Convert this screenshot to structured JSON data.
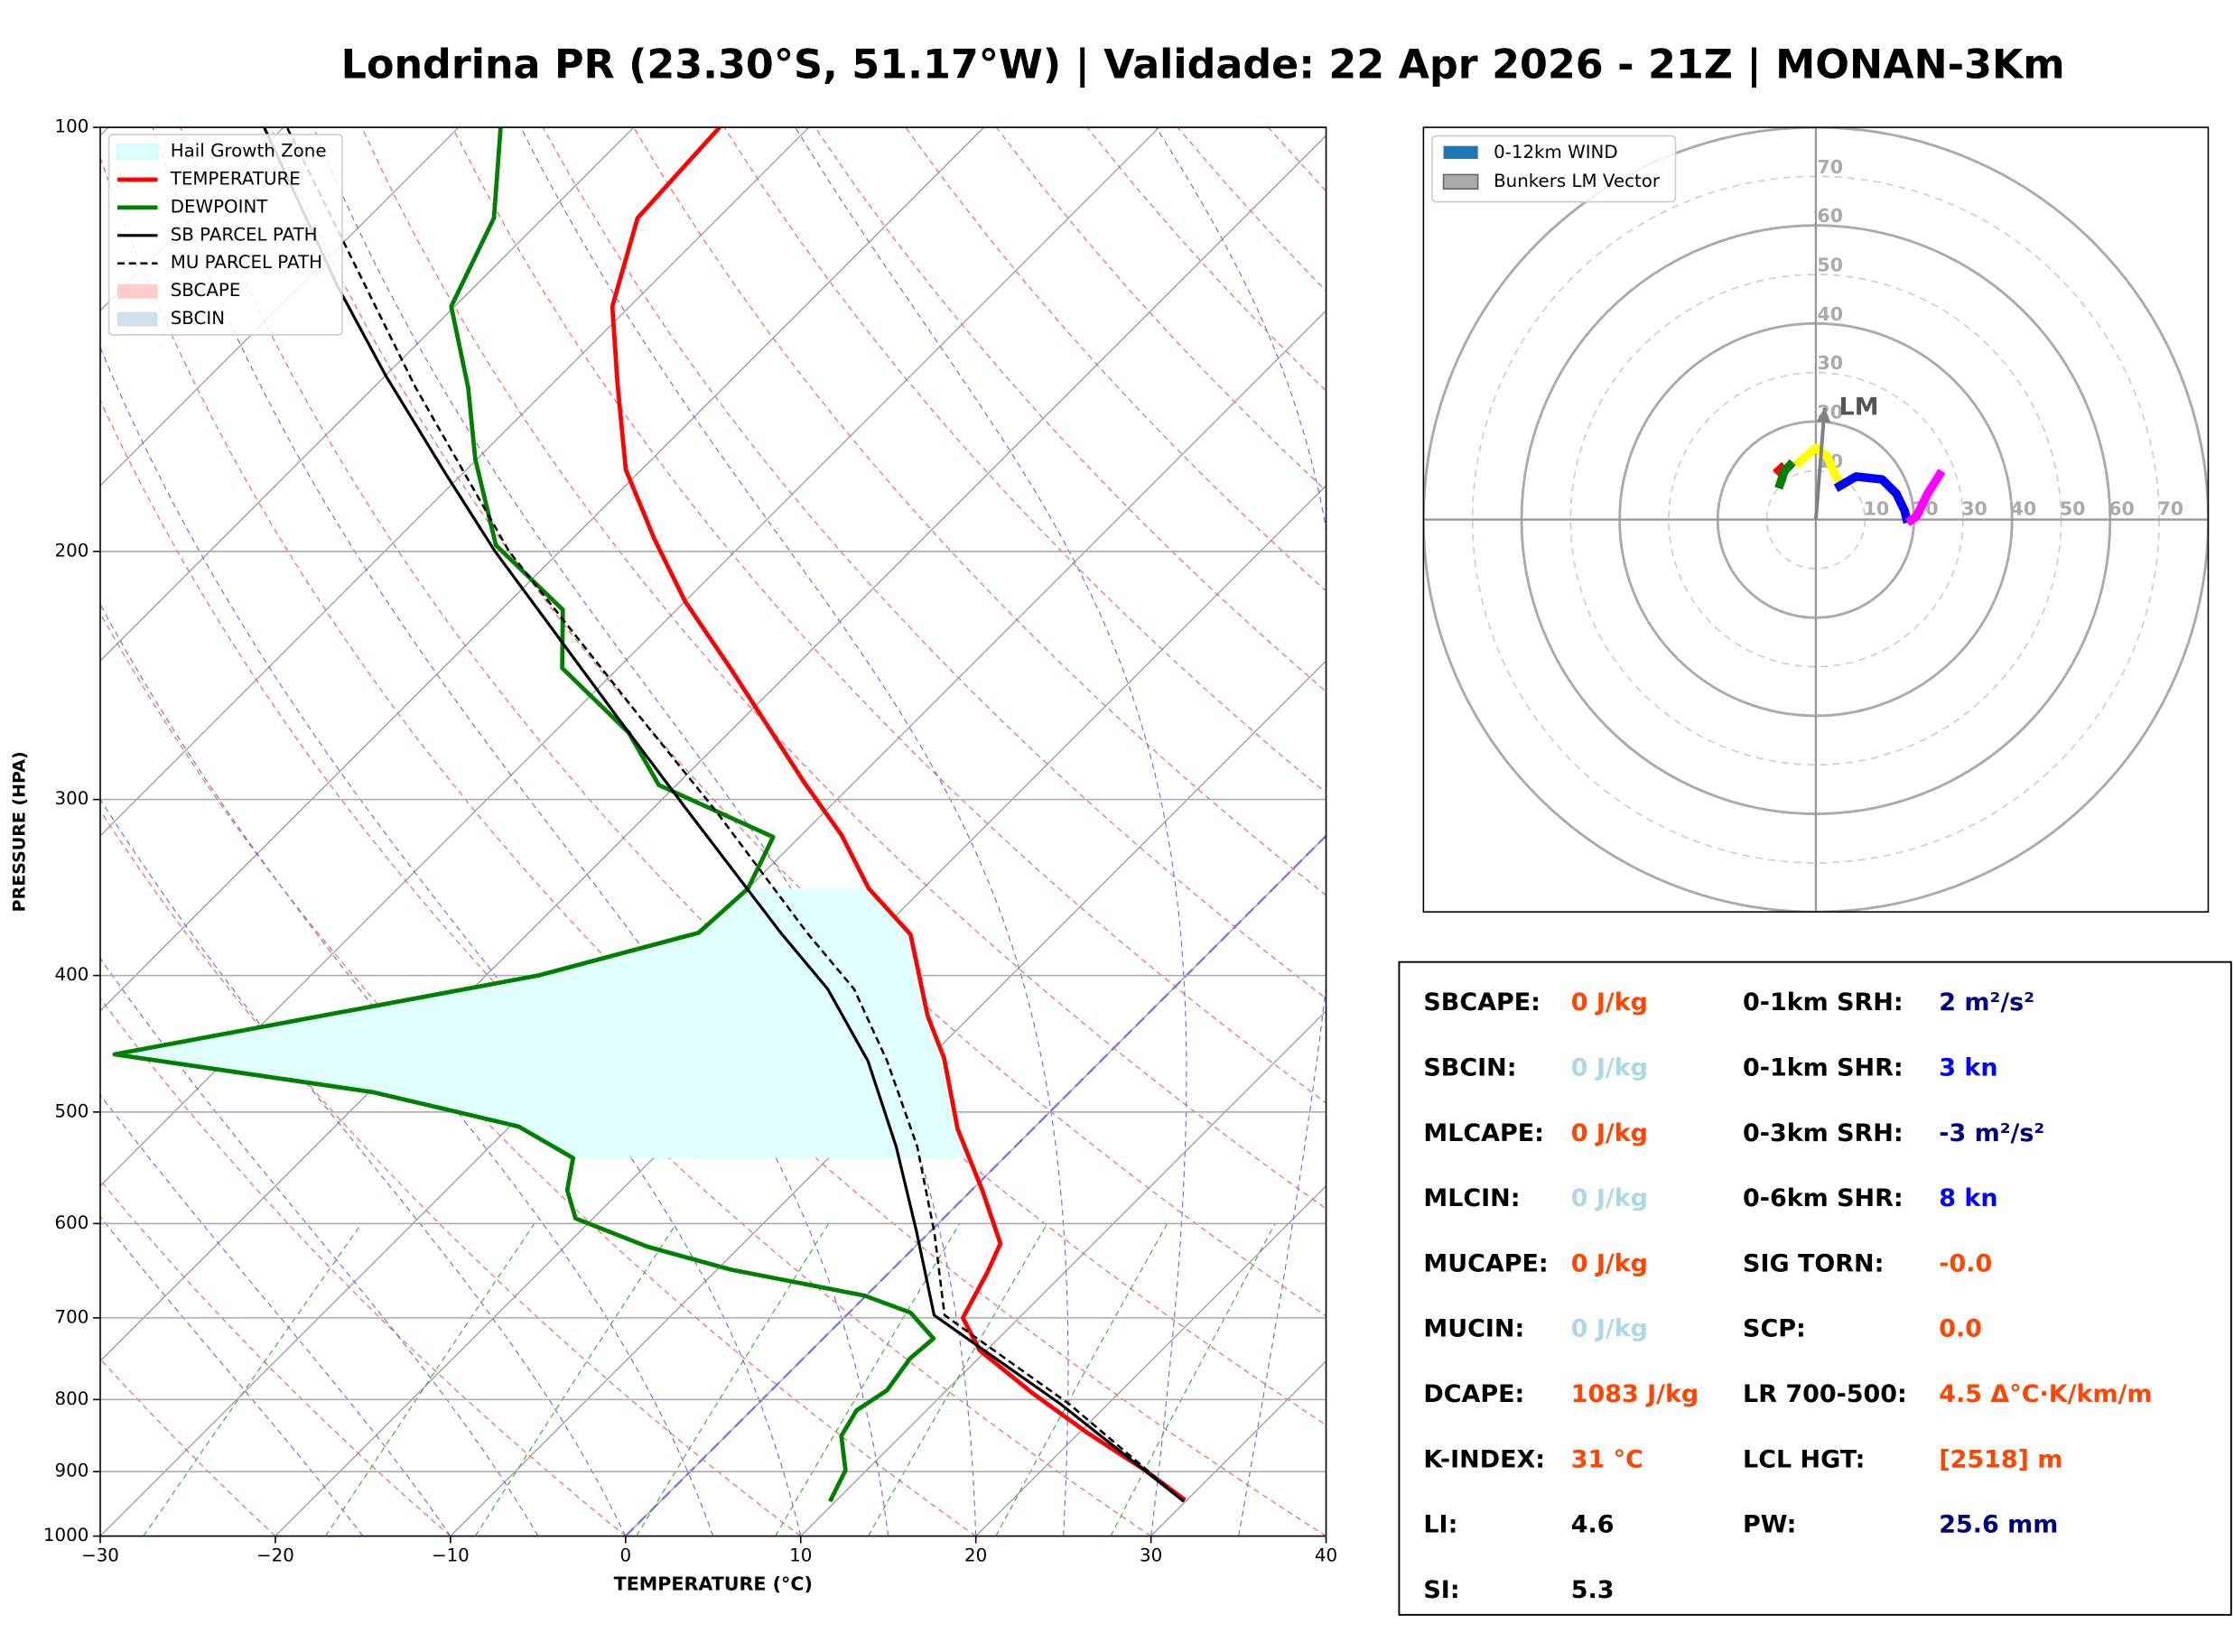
{
  "chart_data": [
    {
      "type": "skewt",
      "title": "Londrina PR (23.30°S, 51.17°W) | Validade: 22 Apr 2026 - 21Z | MONAN-3Km",
      "xlabel": "TEMPERATURE (°C)",
      "ylabel": "PRESSURE (HPA)",
      "xlim": [
        -30,
        40
      ],
      "ylim": [
        1000,
        100
      ],
      "log_y": true,
      "xticks": [
        {
          "value": -30,
          "label": "−30"
        },
        {
          "value": -20,
          "label": "−20"
        },
        {
          "value": -10,
          "label": "−10"
        },
        0,
        10,
        20,
        30,
        40
      ],
      "yticks": [
        100,
        200,
        300,
        400,
        500,
        600,
        700,
        800,
        900,
        1000
      ],
      "grid": true,
      "legend": "upper left",
      "hail_growth_zone": {
        "name": "Hail Growth Zone",
        "color": "#e0ffff",
        "pressure": [
          539,
          347
        ]
      },
      "series": [
        {
          "name": "TEMPERATURE",
          "color": "#ff0000",
          "dashed": false,
          "width": 3,
          "pressure": [
            943,
            898,
            845,
            791,
            738,
            700,
            650,
            620,
            568,
            514,
            458,
            427,
            374,
            347,
            318,
            292,
            242,
            217,
            196,
            175,
            152,
            134,
            116,
            100
          ],
          "values": [
            29.9,
            25.9,
            20.5,
            15.0,
            9.6,
            6.8,
            5.6,
            4.7,
            0.6,
            -4.3,
            -9.1,
            -12.5,
            -18.1,
            -23.1,
            -27.7,
            -32.8,
            -43.6,
            -50,
            -55.3,
            -60.9,
            -66.3,
            -71,
            -74.6,
            -75.1
          ]
        },
        {
          "name": "DEWPOINT",
          "color": "#008000",
          "dashed": false,
          "width": 3,
          "pressure": [
            945,
            898,
            849,
            814,
            788,
            748,
            724,
            694,
            675,
            647,
            623,
            595,
            568,
            539,
            512,
            484,
            455,
            400,
            373,
            347,
            319,
            293,
            269,
            242,
            220,
            198,
            172,
            153,
            134,
            116,
            100
          ],
          "values": [
            9.7,
            8.8,
            6.6,
            6.0,
            6.6,
            6.1,
            6.3,
            3.5,
            -0.1,
            -9.2,
            -15.3,
            -21,
            -23.1,
            -24.6,
            -29.5,
            -39.8,
            -56.7,
            -37,
            -30.3,
            -30,
            -31.5,
            -41,
            -45.7,
            -53.2,
            -56.5,
            -64,
            -70.1,
            -74.6,
            -80.2,
            -82.8,
            -87.6
          ]
        },
        {
          "name": "SB PARCEL PATH",
          "color": "#000000",
          "dashed": false,
          "width": 2,
          "pressure": [
            945,
            806,
            697,
            609,
            529,
            460,
            409,
            373,
            305,
            262,
            200,
            176,
            150,
            130,
            100
          ],
          "values": [
            29.9,
            17.3,
            5,
            -0.7,
            -6.8,
            -13.3,
            -19.7,
            -25.6,
            -38,
            -47.3,
            -63.7,
            -71,
            -80,
            -87.7,
            -101.1
          ]
        },
        {
          "name": "MU PARCEL PATH",
          "color": "#000000",
          "dashed": true,
          "width": 1.6,
          "pressure": [
            945,
            806,
            697,
            609,
            529,
            460,
            409,
            373,
            305,
            262,
            200,
            153,
            100
          ],
          "values": [
            29.9,
            17.8,
            5.6,
            0.3,
            -5.6,
            -12.2,
            -18.2,
            -24.1,
            -36.4,
            -46,
            -62.9,
            -77.6,
            -99.8
          ]
        }
      ],
      "areas": [
        {
          "name": "SBCAPE",
          "color": "#ffcccc"
        },
        {
          "name": "SBCIN",
          "color": "#cfdfee"
        }
      ]
    },
    {
      "type": "hodograph",
      "rlim": 80,
      "rticks": [
        10,
        20,
        30,
        40,
        50,
        60,
        70
      ],
      "legend": [
        {
          "name": "0-12km WIND",
          "color": "#1f77b4"
        }
      ],
      "series": [
        {
          "color": "#ff0000",
          "u": [
            -8.2,
            -6.4
          ],
          "v": [
            9.4,
            11.1
          ]
        },
        {
          "color": "#008000",
          "u": [
            -7.6,
            -6.4,
            -4.7
          ],
          "v": [
            6.4,
            9.9,
            11.7
          ]
        },
        {
          "color": "#ffff00",
          "u": [
            -4.1,
            0,
            2.3,
            4.1,
            6.4
          ],
          "v": [
            11.1,
            14.6,
            12.9,
            8.8,
            6.4
          ]
        },
        {
          "color": "#0000ff",
          "u": [
            4.1,
            8.2,
            13.5,
            16.4,
            18.1,
            18.7
          ],
          "v": [
            6.4,
            8.8,
            8.2,
            5.3,
            1.8,
            -0.6
          ]
        },
        {
          "color": "#ff00ff",
          "u": [
            18.7,
            20.5,
            22.8,
            25.7
          ],
          "v": [
            -0.6,
            0.6,
            5.3,
            9.9
          ]
        }
      ],
      "bunkers_lm": {
        "name": "Bunkers LM Vector",
        "label": "LM",
        "color": "#808080",
        "u": 1.8,
        "v": 22.8
      }
    }
  ],
  "stats": {
    "left": [
      {
        "label": "SBCAPE:",
        "value": "0 J/kg",
        "color": "#ff4500"
      },
      {
        "label": "SBCIN:",
        "value": "0 J/kg",
        "color": "#add8e6"
      },
      {
        "label": "MLCAPE:",
        "value": "0 J/kg",
        "color": "#ff4500"
      },
      {
        "label": "MLCIN:",
        "value": "0 J/kg",
        "color": "#add8e6"
      },
      {
        "label": "MUCAPE:",
        "value": "0 J/kg",
        "color": "#ff4500"
      },
      {
        "label": "MUCIN:",
        "value": "0 J/kg",
        "color": "#add8e6"
      },
      {
        "label": "DCAPE:",
        "value": "1083 J/kg",
        "color": "#ff4500"
      },
      {
        "label": "K-INDEX:",
        "value": "31 °C",
        "color": "#ff4500"
      },
      {
        "label": "LI:",
        "value": "4.6",
        "color": "#000000"
      },
      {
        "label": "SI:",
        "value": "5.3",
        "color": "#000000"
      }
    ],
    "right": [
      {
        "label": "0-1km SRH:",
        "value": "2 m²/s²",
        "color": "#000080"
      },
      {
        "label": "0-1km SHR:",
        "value": "3 kn",
        "color": "#0000ff"
      },
      {
        "label": "0-3km SRH:",
        "value": "-3 m²/s²",
        "color": "#000080"
      },
      {
        "label": "0-6km SHR:",
        "value": "8 kn",
        "color": "#0000ff"
      },
      {
        "label": "SIG TORN:",
        "value": "-0.0",
        "color": "#ff4500"
      },
      {
        "label": "SCP:",
        "value": "0.0",
        "color": "#ff4500"
      },
      {
        "label": "LR 700-500:",
        "value": "4.5 Δ°C·K/km/m",
        "color": "#ff4500"
      },
      {
        "label": "LCL HGT:",
        "value": "[2518] m",
        "color": "#ff4500"
      },
      {
        "label": "PW:",
        "value": "25.6 mm",
        "color": "#000080"
      }
    ]
  }
}
